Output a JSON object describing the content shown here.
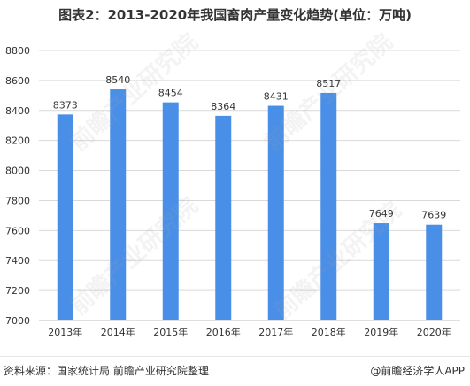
{
  "title": "图表2：2013-2020年我国畜肉产量变化趋势(单位：万吨)",
  "source": "资料来源：国家统计局 前瞻产业研究院整理",
  "brand": "@前瞻经济学人APP",
  "watermark": "前瞻产业研究院",
  "colors": {
    "bar": "#4a8fe7",
    "grid": "#d9d9d9",
    "axis": "#bfbfbf",
    "text": "#333333"
  },
  "chart_data": {
    "type": "bar",
    "categories": [
      "2013年",
      "2014年",
      "2015年",
      "2016年",
      "2017年",
      "2018年",
      "2019年",
      "2020年"
    ],
    "values": [
      8373,
      8540,
      8454,
      8364,
      8431,
      8517,
      7649,
      7639
    ],
    "ylim": [
      7000,
      8800
    ],
    "yticks": [
      7000,
      7200,
      7400,
      7600,
      7800,
      8000,
      8200,
      8400,
      8600,
      8800
    ],
    "grid": true,
    "legend": "none"
  }
}
